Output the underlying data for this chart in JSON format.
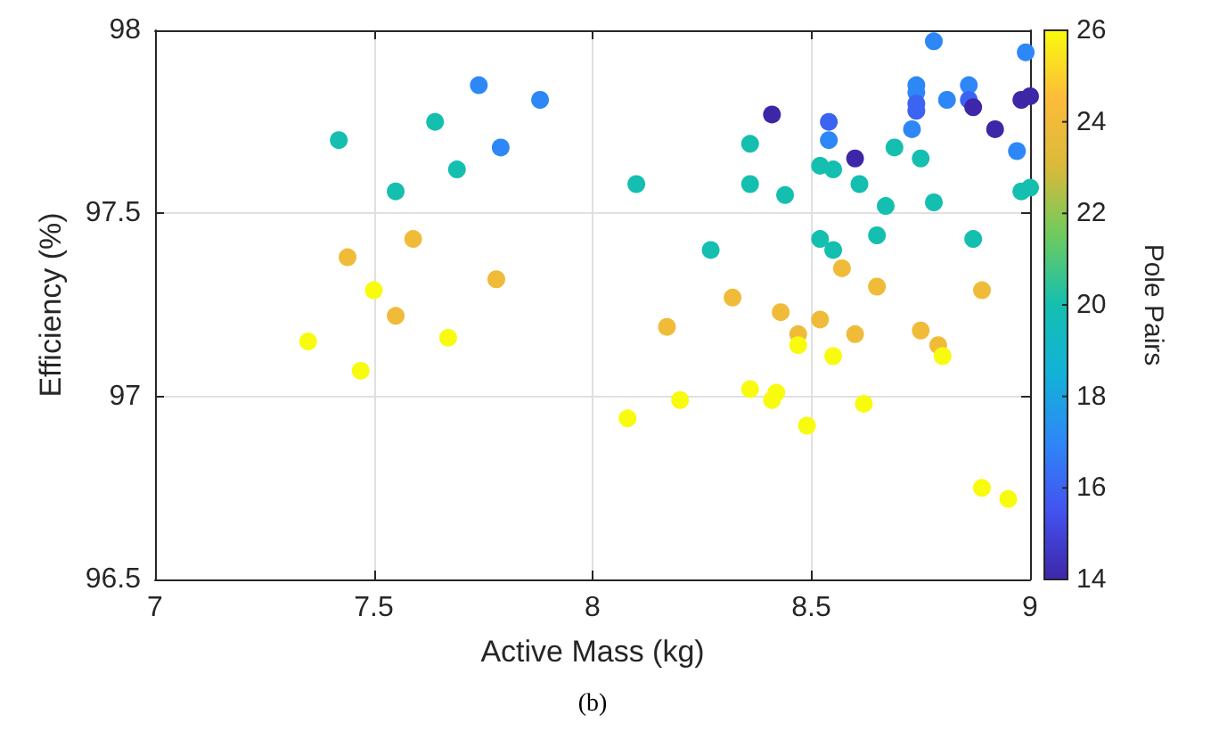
{
  "chart_data": {
    "type": "scatter",
    "xlabel": "Active Mass (kg)",
    "ylabel": "Efficiency (%)",
    "clabel": "Pole Pairs",
    "annotations": [
      "(b)"
    ],
    "xlim": [
      7,
      9
    ],
    "xticks": [
      7,
      7.5,
      8,
      8.5,
      9
    ],
    "ylim": [
      96.5,
      98
    ],
    "yticks": [
      96.5,
      97,
      97.5,
      98
    ],
    "clim": [
      14,
      26
    ],
    "cticks": [
      14,
      16,
      18,
      20,
      22,
      24,
      26
    ],
    "grid": true,
    "marker": "circle",
    "x": [
      7.42,
      7.55,
      7.64,
      7.69,
      7.74,
      7.79,
      7.88,
      7.59,
      7.44,
      7.78,
      7.55,
      7.5,
      7.35,
      7.67,
      7.47,
      8.1,
      8.36,
      8.36,
      8.44,
      8.41,
      8.27,
      8.52,
      8.55,
      8.52,
      8.55,
      8.54,
      8.54,
      8.6,
      8.61,
      8.69,
      8.75,
      8.67,
      8.65,
      8.78,
      8.87,
      8.78,
      8.74,
      8.74,
      8.74,
      8.74,
      8.73,
      8.81,
      8.86,
      8.86,
      8.87,
      8.92,
      8.98,
      9.0,
      8.99,
      8.97,
      8.98,
      9.0,
      8.57,
      8.65,
      8.89,
      8.32,
      8.43,
      8.52,
      8.17,
      8.47,
      8.6,
      8.75,
      8.79,
      8.47,
      8.55,
      8.8,
      8.36,
      8.42,
      8.41,
      8.2,
      8.62,
      8.08,
      8.49,
      8.89,
      8.95
    ],
    "values": [
      97.7,
      97.56,
      97.75,
      97.62,
      97.85,
      97.68,
      97.81,
      97.43,
      97.38,
      97.32,
      97.22,
      97.29,
      97.15,
      97.16,
      97.07,
      97.58,
      97.69,
      97.58,
      97.55,
      97.77,
      97.4,
      97.43,
      97.4,
      97.63,
      97.62,
      97.75,
      97.7,
      97.65,
      97.58,
      97.68,
      97.65,
      97.52,
      97.44,
      97.53,
      97.43,
      97.97,
      97.85,
      97.83,
      97.8,
      97.78,
      97.73,
      97.81,
      97.85,
      97.81,
      97.79,
      97.73,
      97.81,
      97.82,
      97.94,
      97.67,
      97.56,
      97.57,
      97.35,
      97.3,
      97.29,
      97.27,
      97.23,
      97.21,
      97.19,
      97.17,
      97.17,
      97.18,
      97.14,
      97.14,
      97.11,
      97.11,
      97.02,
      97.01,
      96.99,
      96.99,
      96.98,
      96.94,
      96.92,
      96.75,
      96.72
    ],
    "cvalues": [
      20,
      20,
      20,
      20,
      17,
      17,
      17,
      24,
      24,
      24,
      24,
      26,
      26,
      26,
      26,
      20,
      20,
      20,
      20,
      14,
      20,
      20,
      20,
      20,
      20,
      16,
      17,
      14,
      20,
      20,
      20,
      20,
      20,
      20,
      20,
      17,
      17,
      17,
      16,
      16,
      17,
      17,
      17,
      16,
      14,
      14,
      14,
      14,
      17,
      17,
      20,
      20,
      24,
      24,
      24,
      24,
      24,
      24,
      24,
      24,
      24,
      24,
      24,
      26,
      26,
      26,
      26,
      26,
      26,
      26,
      26,
      26,
      26,
      26,
      26
    ]
  }
}
